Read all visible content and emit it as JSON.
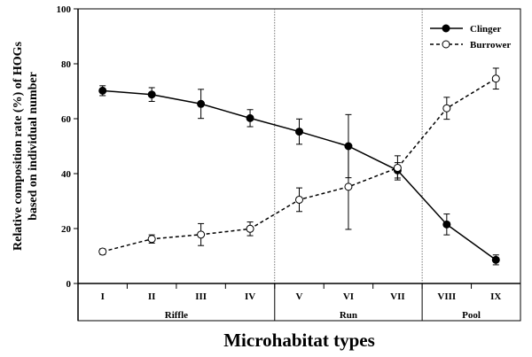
{
  "chart_data": {
    "type": "line",
    "categories": [
      "I",
      "II",
      "III",
      "IV",
      "V",
      "VI",
      "VII",
      "VIII",
      "IX"
    ],
    "xlabel": "Microhabitat types",
    "ylabel": "Relative composition rate (%) of HOGs based on individual number",
    "ylim": [
      0,
      100
    ],
    "yticks": [
      0,
      20,
      40,
      60,
      80,
      100
    ],
    "groups": [
      {
        "label": "Riffle",
        "categories": [
          "I",
          "II",
          "III",
          "IV"
        ]
      },
      {
        "label": "Run",
        "categories": [
          "V",
          "VI",
          "VII"
        ]
      },
      {
        "label": "Pool",
        "categories": [
          "VIII",
          "IX"
        ]
      }
    ],
    "legend_position": "top-right",
    "series": [
      {
        "name": "Clinger",
        "marker": "filled-circle",
        "line": "solid",
        "values": [
          70.2,
          68.8,
          65.4,
          60.2,
          55.3,
          50.0,
          41.2,
          21.5,
          8.6
        ],
        "errors": [
          1.8,
          2.5,
          5.3,
          3.1,
          4.6,
          11.5,
          2.8,
          3.8,
          1.8
        ]
      },
      {
        "name": "Burrower",
        "marker": "open-circle",
        "line": "dashed",
        "values": [
          11.6,
          16.2,
          17.8,
          19.9,
          30.5,
          35.2,
          42.1,
          63.8,
          74.6
        ],
        "errors": [
          1.0,
          1.5,
          4.0,
          2.5,
          4.3,
          15.5,
          4.4,
          4.0,
          3.8
        ]
      }
    ]
  }
}
